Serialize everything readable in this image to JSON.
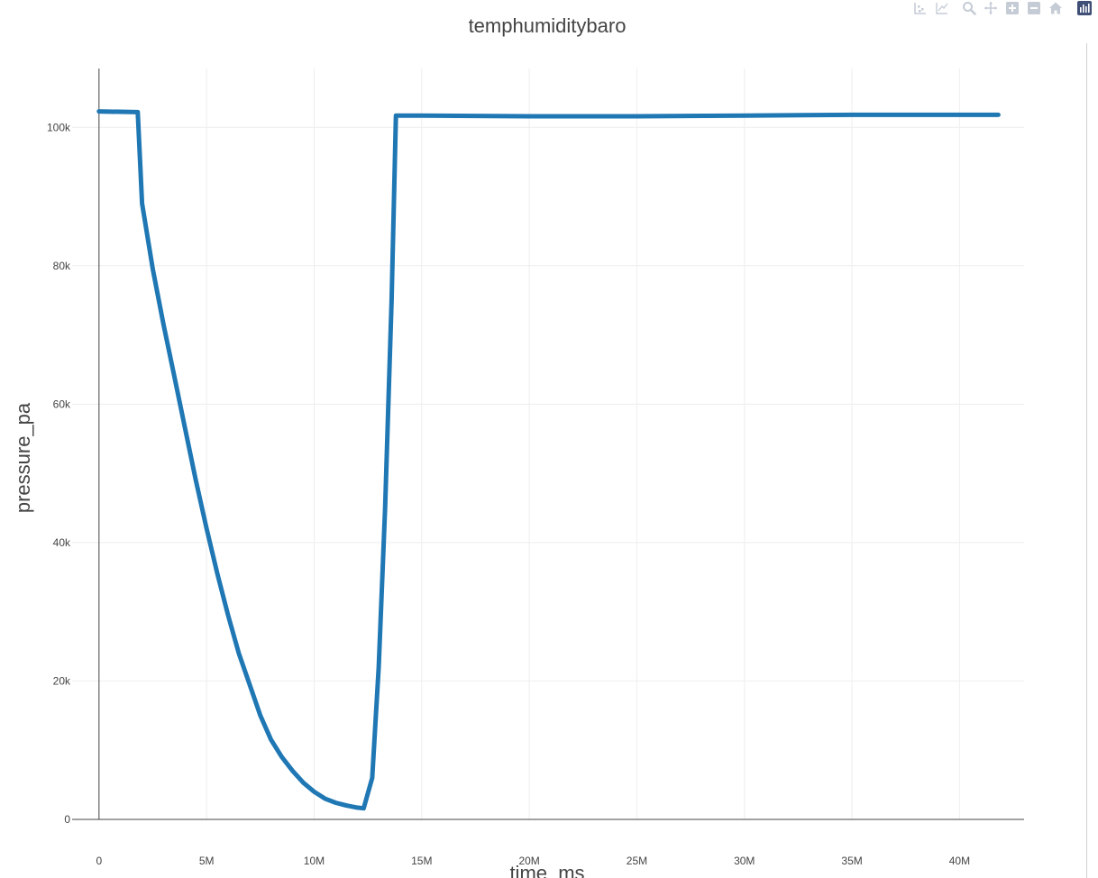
{
  "modebar": {
    "icons": [
      "compare-data-icon",
      "closest-data-icon",
      "zoom-icon",
      "pan-icon",
      "zoom-in-icon",
      "zoom-out-icon",
      "reset-axes-icon",
      "plotly-logo-icon"
    ],
    "colors": {
      "icon": "#c6ccd6",
      "logo": "#3f4f75"
    }
  },
  "chart_data": {
    "type": "line",
    "title": "temphumiditybaro",
    "xlabel": "time_ms",
    "ylabel": "pressure_pa",
    "xlim": [
      -1250000,
      43000000
    ],
    "ylim": [
      -3000,
      108500
    ],
    "x_ticks": [
      0,
      5000000,
      10000000,
      15000000,
      20000000,
      25000000,
      30000000,
      35000000,
      40000000
    ],
    "x_tick_labels": [
      "0",
      "5M",
      "10M",
      "15M",
      "20M",
      "25M",
      "30M",
      "35M",
      "40M"
    ],
    "y_ticks": [
      0,
      20000,
      40000,
      60000,
      80000,
      100000
    ],
    "y_tick_labels": [
      "0",
      "20k",
      "40k",
      "60k",
      "80k",
      "100k"
    ],
    "grid": true,
    "legend": "none",
    "line_color": "#1f77b4",
    "series": [
      {
        "x": [
          0,
          1800000,
          2000000,
          2500000,
          3000000,
          3500000,
          4000000,
          4500000,
          5000000,
          5500000,
          6000000,
          6500000,
          7000000,
          7500000,
          8000000,
          8500000,
          9000000,
          9500000,
          10000000,
          10500000,
          11000000,
          11500000,
          12000000,
          12300000,
          12700000,
          13000000,
          13300000,
          13600000,
          13800000,
          15000000,
          20000000,
          25000000,
          30000000,
          35000000,
          40000000,
          41800000
        ],
        "y": [
          102300,
          102200,
          89000,
          79500,
          71500,
          64000,
          56500,
          49000,
          42000,
          35500,
          29500,
          24000,
          19500,
          15000,
          11500,
          9000,
          7000,
          5300,
          4000,
          3000,
          2400,
          2000,
          1700,
          1600,
          6000,
          22000,
          45000,
          75000,
          101700,
          101700,
          101600,
          101600,
          101700,
          101800,
          101800,
          101800
        ]
      }
    ]
  }
}
